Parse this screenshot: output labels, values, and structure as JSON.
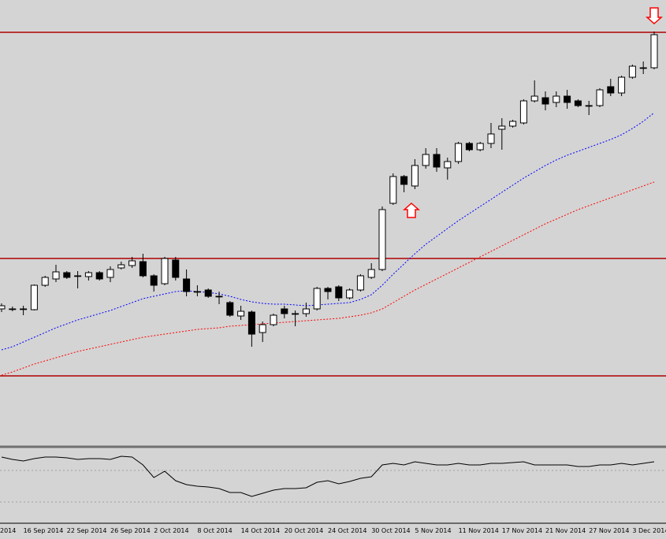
{
  "chart_data": [
    {
      "type": "candlestick",
      "categories": [
        null,
        null,
        "16 Sep 2014",
        null,
        null,
        null,
        "22 Sep 2014",
        null,
        null,
        null,
        "26 Sep 2014",
        null,
        null,
        null,
        "2 Oct 2014",
        null,
        null,
        null,
        "8 Oct 2014",
        null,
        null,
        null,
        "14 Oct 2014",
        null,
        null,
        null,
        "20 Oct 2014",
        null,
        null,
        null,
        "24 Oct 2014",
        null,
        null,
        null,
        "30 Oct 2014",
        null,
        null,
        null,
        "5 Nov 2014",
        null,
        null,
        null,
        "11 Nov 2014",
        null,
        null,
        null,
        "17 Nov 2014",
        null,
        null,
        null,
        "21 Nov 2014",
        null,
        null,
        null,
        "27 Nov 2014",
        null,
        null,
        null,
        "3 Dec 2014",
        null,
        null
      ],
      "edge_label": "2014",
      "open": [
        173,
        173,
        173,
        172,
        203,
        211,
        219,
        215,
        214,
        219,
        213,
        225,
        228,
        233,
        215,
        205,
        235,
        211,
        195,
        197,
        189,
        181,
        164,
        169,
        143,
        153,
        173,
        167,
        167,
        173,
        199,
        201,
        187,
        197,
        213,
        223,
        307,
        341,
        329,
        355,
        369,
        352,
        360,
        383,
        375,
        383,
        401,
        405,
        409,
        437,
        441,
        435,
        443,
        437,
        431,
        431,
        455,
        447,
        467,
        479,
        479
      ],
      "high": [
        180,
        176,
        177,
        204,
        215,
        229,
        221,
        221,
        221,
        221,
        227,
        233,
        239,
        243,
        217,
        239,
        239,
        223,
        203,
        199,
        195,
        183,
        177,
        171,
        157,
        167,
        177,
        171,
        181,
        201,
        201,
        203,
        199,
        217,
        231,
        303,
        345,
        343,
        363,
        377,
        377,
        365,
        385,
        385,
        385,
        409,
        415,
        413,
        439,
        463,
        449,
        449,
        451,
        439,
        437,
        453,
        465,
        469,
        483,
        487,
        525
      ],
      "low": [
        169,
        170,
        165,
        171,
        201,
        207,
        211,
        199,
        209,
        209,
        207,
        223,
        225,
        213,
        195,
        203,
        209,
        189,
        189,
        187,
        179,
        163,
        159,
        125,
        131,
        151,
        161,
        151,
        163,
        171,
        185,
        183,
        185,
        195,
        211,
        221,
        305,
        321,
        325,
        351,
        347,
        337,
        357,
        373,
        373,
        377,
        375,
        403,
        407,
        435,
        425,
        429,
        427,
        429,
        419,
        429,
        443,
        443,
        465,
        471,
        477
      ],
      "close": [
        177,
        173,
        173,
        203,
        213,
        220,
        213,
        215,
        219,
        211,
        223,
        229,
        234,
        215,
        203,
        237,
        213,
        195,
        195,
        189,
        189,
        165,
        170,
        141,
        153,
        165,
        167,
        167,
        173,
        199,
        195,
        187,
        197,
        215,
        223,
        299,
        341,
        331,
        355,
        369,
        353,
        360,
        383,
        375,
        383,
        395,
        405,
        411,
        437,
        443,
        433,
        443,
        435,
        431,
        431,
        451,
        447,
        467,
        481,
        479,
        521
      ],
      "up_color": "#ffffff",
      "down_color": "#000000",
      "series": [
        {
          "color": "#0000ff",
          "values": [
            121,
            125,
            131,
            137,
            143,
            149,
            154,
            159,
            163,
            167,
            171,
            176,
            181,
            186,
            189,
            192,
            195,
            196,
            195,
            194,
            192,
            189,
            185,
            182,
            180,
            179,
            179,
            178,
            177,
            178,
            179,
            180,
            181,
            185,
            191,
            203,
            217,
            230,
            243,
            255,
            265,
            275,
            285,
            294,
            303,
            312,
            321,
            330,
            339,
            347,
            355,
            362,
            368,
            373,
            378,
            383,
            388,
            394,
            402,
            411,
            422
          ]
        },
        {
          "color": "#ff0000",
          "values": [
            89,
            93,
            98,
            103,
            107,
            111,
            115,
            119,
            122,
            125,
            128,
            131,
            134,
            137,
            139,
            141,
            143,
            145,
            147,
            148,
            149,
            151,
            152,
            153,
            154,
            155,
            156,
            157,
            158,
            159,
            160,
            161,
            163,
            165,
            168,
            173,
            181,
            189,
            197,
            204,
            211,
            218,
            225,
            232,
            239,
            246,
            253,
            260,
            267,
            274,
            281,
            287,
            293,
            299,
            304,
            309,
            314,
            319,
            324,
            329,
            334
          ]
        }
      ],
      "levels": [
        524,
        237,
        88
      ],
      "level_color": "#b00000",
      "ylim": [
        0,
        565
      ]
    },
    {
      "type": "line",
      "series": [
        {
          "color": "#000000",
          "values": [
            80,
            77,
            75,
            78,
            80,
            80,
            79,
            77,
            78,
            78,
            77,
            81,
            80,
            70,
            54,
            62,
            50,
            45,
            43,
            42,
            40,
            35,
            35,
            30,
            34,
            38,
            40,
            40,
            41,
            48,
            50,
            46,
            49,
            53,
            55,
            70,
            72,
            70,
            74,
            72,
            70,
            70,
            72,
            70,
            70,
            72,
            72,
            73,
            74,
            70,
            70,
            70,
            70,
            68,
            68,
            70,
            70,
            72,
            70,
            72,
            74
          ]
        }
      ],
      "levels": [
        63,
        23
      ],
      "level_color": "#a0a0a0",
      "ylim": [
        0,
        92
      ]
    }
  ]
}
